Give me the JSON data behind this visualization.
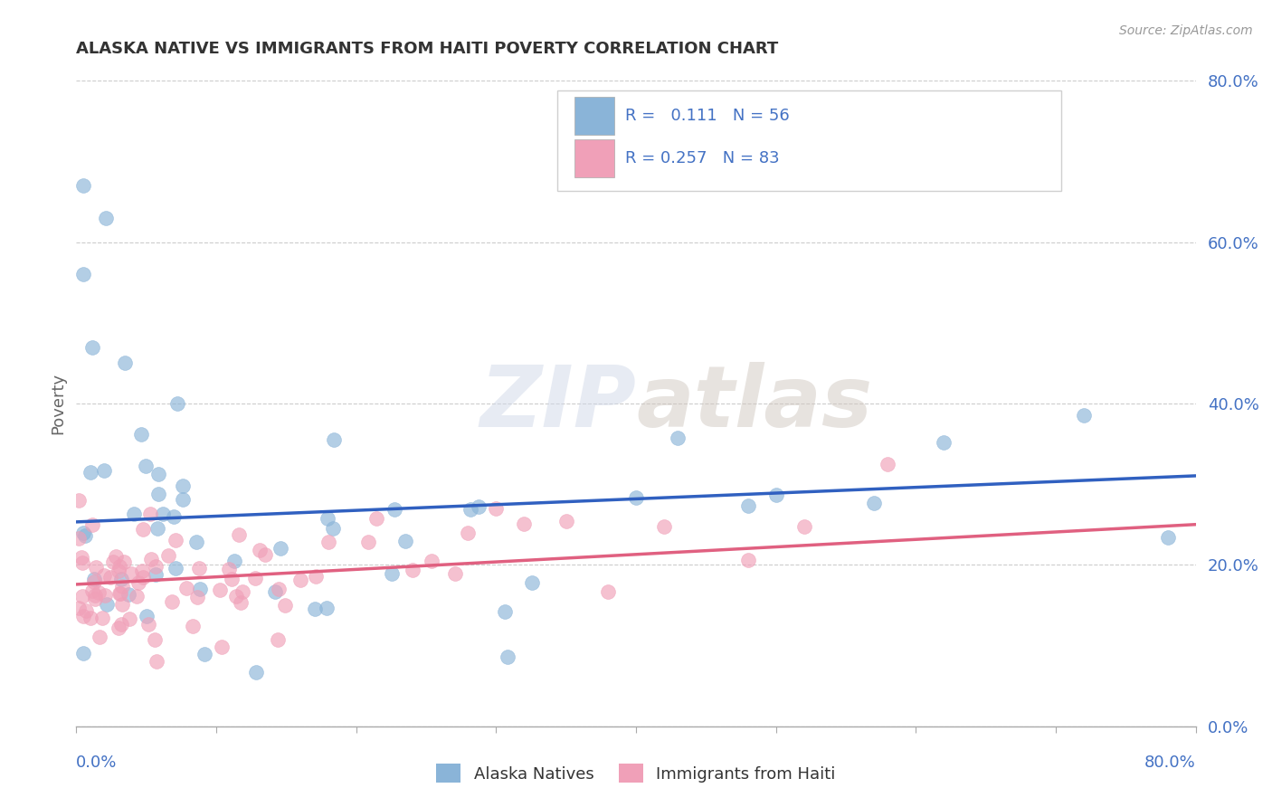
{
  "title": "ALASKA NATIVE VS IMMIGRANTS FROM HAITI POVERTY CORRELATION CHART",
  "source": "Source: ZipAtlas.com",
  "ylabel": "Poverty",
  "color_blue": "#8ab4d8",
  "color_pink": "#f0a0b8",
  "trendline_blue": "#3060c0",
  "trendline_pink": "#e06080",
  "watermark_zip": "ZIP",
  "watermark_atlas": "atlas",
  "background_color": "#ffffff",
  "grid_color": "#cccccc",
  "title_color": "#333333",
  "axis_label_color": "#4472c4",
  "legend_box_color": "#e8e8e8",
  "r1_text": "R =   0.111   N = 56",
  "r2_text": "R = 0.257   N = 83"
}
